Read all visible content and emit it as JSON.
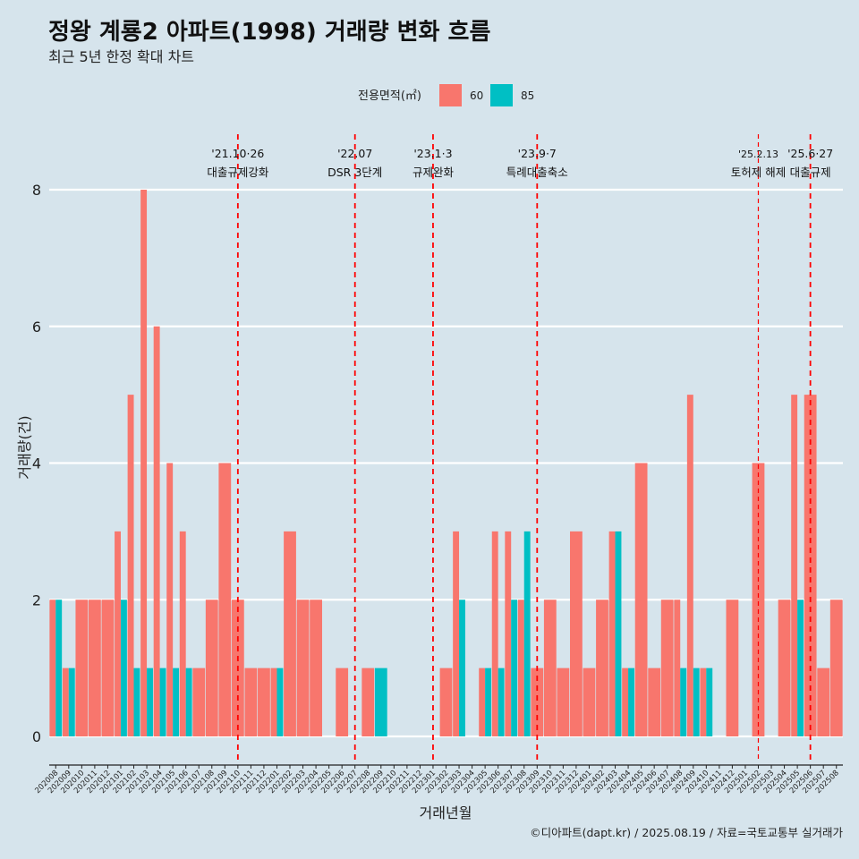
{
  "title": "정왕 계룡2 아파트(1998) 거래량 변화 흐름",
  "subtitle": "최근 5년 한정 확대 차트",
  "caption": "©디아파트(dapt.kr) / 2025.08.19 / 자료=국토교통부 실거래가",
  "colors": {
    "s60": "#f8766d",
    "s85": "#00bfc4",
    "grid": "#ffffff",
    "event": "#ff0000",
    "background": "#d6e4ec"
  },
  "chart_data": {
    "type": "bar",
    "xlabel": "거래년월",
    "ylabel": "거래량(건)",
    "ylim": [
      0,
      8
    ],
    "yticks": [
      0,
      2,
      4,
      6,
      8
    ],
    "legend": {
      "title": "전용면적(㎡)",
      "position": "top"
    },
    "categories": [
      "202008",
      "202009",
      "202010",
      "202011",
      "202012",
      "202101",
      "202102",
      "202103",
      "202104",
      "202105",
      "202106",
      "202107",
      "202108",
      "202109",
      "202110",
      "202111",
      "202112",
      "202201",
      "202202",
      "202203",
      "202204",
      "202205",
      "202206",
      "202207",
      "202208",
      "202209",
      "202210",
      "202211",
      "202212",
      "202301",
      "202302",
      "202303",
      "202304",
      "202305",
      "202306",
      "202307",
      "202308",
      "202309",
      "202310",
      "202311",
      "202312",
      "202401",
      "202402",
      "202403",
      "202404",
      "202405",
      "202406",
      "202407",
      "202408",
      "202409",
      "202410",
      "202411",
      "202412",
      "202501",
      "202502",
      "202503",
      "202504",
      "202505",
      "202506",
      "202507",
      "202508"
    ],
    "series": [
      {
        "name": "60",
        "values": [
          2,
          1,
          2,
          2,
          2,
          3,
          5,
          8,
          6,
          4,
          3,
          1,
          2,
          4,
          2,
          1,
          1,
          1,
          3,
          2,
          2,
          0,
          1,
          0,
          1,
          0,
          0,
          0,
          0,
          0,
          1,
          3,
          0,
          1,
          3,
          3,
          2,
          1,
          2,
          1,
          3,
          1,
          2,
          3,
          1,
          4,
          1,
          2,
          2,
          5,
          1,
          0,
          2,
          0,
          4,
          0,
          2,
          5,
          5,
          1,
          2
        ]
      },
      {
        "name": "85",
        "values": [
          2,
          1,
          0,
          0,
          0,
          2,
          1,
          1,
          1,
          1,
          1,
          0,
          0,
          0,
          0,
          0,
          0,
          1,
          0,
          0,
          0,
          0,
          0,
          0,
          0,
          1,
          0,
          0,
          0,
          0,
          0,
          2,
          0,
          1,
          1,
          2,
          3,
          0,
          0,
          0,
          0,
          0,
          0,
          3,
          1,
          0,
          0,
          0,
          1,
          1,
          1,
          0,
          0,
          0,
          0,
          0,
          0,
          2,
          0,
          0,
          0
        ]
      }
    ],
    "events": [
      {
        "at": "202110",
        "date": "'21.10·26",
        "label": "대출규제강화"
      },
      {
        "at": "202207",
        "date": "'22.07",
        "label": "DSR 3단계"
      },
      {
        "at": "202301",
        "date": "'23.1·3",
        "label": "규제완화"
      },
      {
        "at": "202309",
        "date": "'23.9·7",
        "label": "특례대출축소"
      },
      {
        "at": "202502",
        "date": "'25.2.13",
        "label": "토허제 해제"
      },
      {
        "at": "202506",
        "date": "'25.6·27",
        "label": "대출규제"
      }
    ]
  }
}
